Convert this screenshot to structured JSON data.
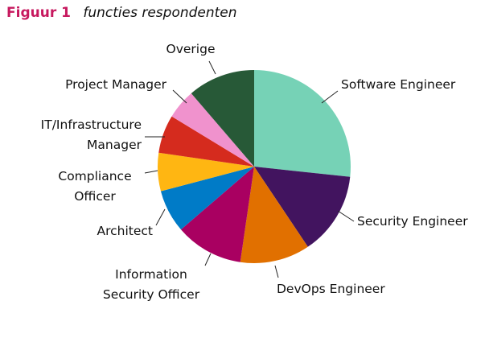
{
  "chart_data": {
    "type": "pie",
    "title_prefix": "Figuur 1",
    "title": "functies respondenten",
    "unit": "percent (estimated)",
    "slices": [
      {
        "label": [
          "Software Engineer"
        ],
        "value": 26.7,
        "color": "#76d2b6"
      },
      {
        "label": [
          "Security Engineer"
        ],
        "value": 13.9,
        "color": "#42145f"
      },
      {
        "label": [
          "DevOps Engineer"
        ],
        "value": 11.7,
        "color": "#e17000"
      },
      {
        "label": [
          "Information",
          "Security Officer"
        ],
        "value": 11.4,
        "color": "#a90061"
      },
      {
        "label": [
          "Architect"
        ],
        "value": 7.2,
        "color": "#007bc7"
      },
      {
        "label": [
          "Compliance",
          "Officer"
        ],
        "value": 6.4,
        "color": "#ffb612"
      },
      {
        "label": [
          "IT/Infrastructure",
          "Manager"
        ],
        "value": 6.4,
        "color": "#d52b1e"
      },
      {
        "label": [
          "Project Manager"
        ],
        "value": 5.0,
        "color": "#f092cd"
      },
      {
        "label": [
          "Overige"
        ],
        "value": 11.3,
        "color": "#275937"
      }
    ]
  }
}
